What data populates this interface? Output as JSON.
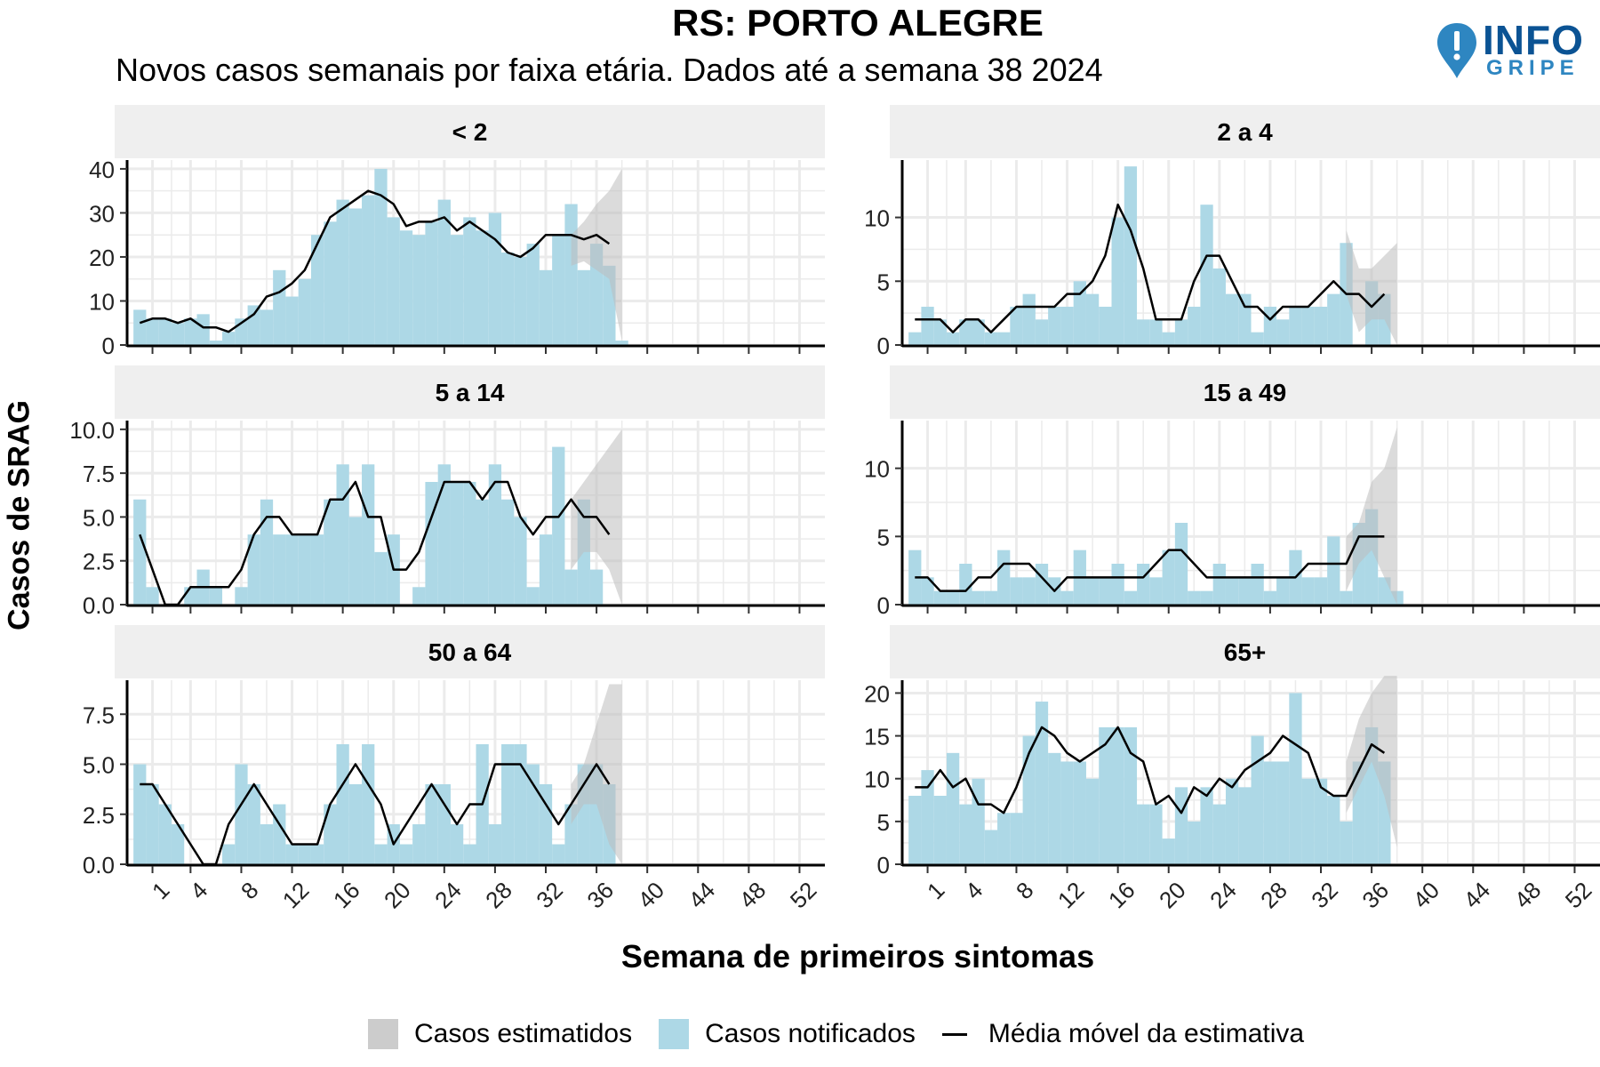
{
  "title": "RS: PORTO ALEGRE",
  "subtitle": "Novos casos semanais por faixa etária. Dados até a semana 38 2024",
  "logo": {
    "text": "INFO",
    "sub": "GRIPE"
  },
  "colors": {
    "notified": "#add8e6",
    "estimated": "#cccccc",
    "line": "#000000",
    "strip": "#efefef",
    "grid": "#ebebeb"
  },
  "chart_data": {
    "type": "bar",
    "xlabel": "Semana de primeiros sintomas",
    "ylabel": "Casos de SRAG",
    "x_ticks": [
      1,
      4,
      8,
      12,
      16,
      20,
      24,
      28,
      32,
      36,
      40,
      44,
      48,
      52
    ],
    "x_range": [
      -1,
      54
    ],
    "legend": [
      "Casos estimatidos",
      "Casos notificados",
      "Média móvel da estimativa"
    ],
    "legend_position": "bottom",
    "panels": [
      {
        "label": "< 2",
        "ylim": [
          0,
          42
        ],
        "y_ticks": [
          "0",
          "10",
          "20",
          "30",
          "40"
        ],
        "y_tick_values": [
          0,
          10,
          20,
          30,
          40
        ],
        "weeks": [
          0,
          1,
          2,
          3,
          4,
          5,
          6,
          7,
          8,
          9,
          10,
          11,
          12,
          13,
          14,
          15,
          16,
          17,
          18,
          19,
          20,
          21,
          22,
          23,
          24,
          25,
          26,
          27,
          28,
          29,
          30,
          31,
          32,
          33,
          34,
          35,
          36,
          37,
          38
        ],
        "notified": [
          8,
          6,
          6,
          5,
          6,
          7,
          1,
          3,
          6,
          9,
          8,
          17,
          11,
          15,
          25,
          28,
          33,
          31,
          34,
          40,
          29,
          26,
          25,
          28,
          33,
          25,
          29,
          26,
          30,
          21,
          20,
          23,
          17,
          25,
          32,
          17,
          23,
          18,
          1
        ],
        "moving_avg_weeks": [
          0,
          1,
          2,
          3,
          4,
          5,
          6,
          7,
          8,
          9,
          10,
          11,
          12,
          13,
          14,
          15,
          16,
          17,
          18,
          19,
          20,
          21,
          22,
          23,
          24,
          25,
          26,
          27,
          28,
          29,
          30,
          31,
          32,
          33,
          34,
          35,
          36,
          37
        ],
        "moving_avg": [
          5,
          6,
          6,
          5,
          6,
          4,
          4,
          3,
          5,
          7,
          11,
          12,
          14,
          17,
          23,
          29,
          31,
          33,
          35,
          34,
          32,
          27,
          28,
          28,
          29,
          26,
          28,
          26,
          24,
          21,
          20,
          22,
          25,
          25,
          25,
          24,
          25,
          23
        ],
        "estimate_weeks": [
          34,
          35,
          36,
          37,
          38
        ],
        "estimate_low": [
          18,
          19,
          17,
          15,
          1
        ],
        "estimate_high": [
          25,
          28,
          32,
          35,
          40
        ]
      },
      {
        "label": "2 a 4",
        "ylim": [
          0,
          14.5
        ],
        "y_ticks": [
          "0",
          "5",
          "10"
        ],
        "y_tick_values": [
          0,
          5,
          10
        ],
        "weeks": [
          0,
          1,
          2,
          3,
          4,
          5,
          6,
          7,
          8,
          9,
          10,
          11,
          12,
          13,
          14,
          15,
          16,
          17,
          18,
          19,
          20,
          21,
          22,
          23,
          24,
          25,
          26,
          27,
          28,
          29,
          30,
          31,
          32,
          33,
          34,
          35,
          36,
          37,
          38
        ],
        "notified": [
          1,
          3,
          2,
          1,
          2,
          2,
          1,
          1,
          3,
          4,
          2,
          3,
          3,
          5,
          4,
          3,
          10,
          14,
          2,
          2,
          1,
          2,
          3,
          11,
          6,
          4,
          4,
          1,
          3,
          2,
          3,
          3,
          3,
          4,
          8,
          0,
          5,
          4,
          0
        ],
        "moving_avg_weeks": [
          0,
          1,
          2,
          3,
          4,
          5,
          6,
          7,
          8,
          9,
          10,
          11,
          12,
          13,
          14,
          15,
          16,
          17,
          18,
          19,
          20,
          21,
          22,
          23,
          24,
          25,
          26,
          27,
          28,
          29,
          30,
          31,
          32,
          33,
          34,
          35,
          36,
          37
        ],
        "moving_avg": [
          2,
          2,
          2,
          1,
          2,
          2,
          1,
          2,
          3,
          3,
          3,
          3,
          4,
          4,
          5,
          7,
          11,
          9,
          6,
          2,
          2,
          2,
          5,
          7,
          7,
          5,
          3,
          3,
          2,
          3,
          3,
          3,
          4,
          5,
          4,
          4,
          3,
          4
        ],
        "estimate_weeks": [
          34,
          35,
          36,
          37,
          38
        ],
        "estimate_low": [
          4,
          1,
          2,
          2,
          0
        ],
        "estimate_high": [
          9,
          6,
          6,
          7,
          8
        ]
      },
      {
        "label": "5 a 14",
        "ylim": [
          0,
          10.5
        ],
        "y_ticks": [
          "0.0",
          "2.5",
          "5.0",
          "7.5",
          "10.0"
        ],
        "y_tick_values": [
          0,
          2.5,
          5,
          7.5,
          10
        ],
        "weeks": [
          0,
          1,
          2,
          3,
          4,
          5,
          6,
          7,
          8,
          9,
          10,
          11,
          12,
          13,
          14,
          15,
          16,
          17,
          18,
          19,
          20,
          21,
          22,
          23,
          24,
          25,
          26,
          27,
          28,
          29,
          30,
          31,
          32,
          33,
          34,
          35,
          36,
          37,
          38
        ],
        "notified": [
          6,
          1,
          0,
          0,
          1,
          2,
          1,
          0,
          1,
          4,
          6,
          4,
          4,
          4,
          4,
          6,
          8,
          5,
          8,
          3,
          4,
          0,
          1,
          7,
          8,
          7,
          7,
          6,
          8,
          6,
          5,
          1,
          4,
          9,
          2,
          6,
          2,
          0,
          0
        ],
        "moving_avg_weeks": [
          0,
          1,
          2,
          3,
          4,
          5,
          6,
          7,
          8,
          9,
          10,
          11,
          12,
          13,
          14,
          15,
          16,
          17,
          18,
          19,
          20,
          21,
          22,
          23,
          24,
          25,
          26,
          27,
          28,
          29,
          30,
          31,
          32,
          33,
          34,
          35,
          36,
          37
        ],
        "moving_avg": [
          4,
          2,
          0,
          0,
          1,
          1,
          1,
          1,
          2,
          4,
          5,
          5,
          4,
          4,
          4,
          6,
          6,
          7,
          5,
          5,
          2,
          2,
          3,
          5,
          7,
          7,
          7,
          6,
          7,
          7,
          5,
          4,
          5,
          5,
          6,
          5,
          5,
          4
        ],
        "estimate_weeks": [
          34,
          35,
          36,
          37,
          38
        ],
        "estimate_low": [
          2,
          3,
          3,
          2,
          0
        ],
        "estimate_high": [
          6,
          7,
          8,
          9,
          10
        ]
      },
      {
        "label": "15 a 49",
        "ylim": [
          0,
          13.5
        ],
        "y_ticks": [
          "0",
          "5",
          "10"
        ],
        "y_tick_values": [
          0,
          5,
          10
        ],
        "weeks": [
          0,
          1,
          2,
          3,
          4,
          5,
          6,
          7,
          8,
          9,
          10,
          11,
          12,
          13,
          14,
          15,
          16,
          17,
          18,
          19,
          20,
          21,
          22,
          23,
          24,
          25,
          26,
          27,
          28,
          29,
          30,
          31,
          32,
          33,
          34,
          35,
          36,
          37,
          38
        ],
        "notified": [
          4,
          2,
          1,
          1,
          3,
          1,
          1,
          4,
          2,
          2,
          3,
          2,
          1,
          4,
          2,
          2,
          3,
          1,
          3,
          2,
          4,
          6,
          1,
          1,
          3,
          2,
          2,
          3,
          1,
          2,
          4,
          2,
          2,
          5,
          1,
          6,
          7,
          2,
          1
        ],
        "moving_avg_weeks": [
          0,
          1,
          2,
          3,
          4,
          5,
          6,
          7,
          8,
          9,
          10,
          11,
          12,
          13,
          14,
          15,
          16,
          17,
          18,
          19,
          20,
          21,
          22,
          23,
          24,
          25,
          26,
          27,
          28,
          29,
          30,
          31,
          32,
          33,
          34,
          35,
          36,
          37
        ],
        "moving_avg": [
          2,
          2,
          1,
          1,
          1,
          2,
          2,
          3,
          3,
          3,
          2,
          1,
          2,
          2,
          2,
          2,
          2,
          2,
          2,
          3,
          4,
          4,
          3,
          2,
          2,
          2,
          2,
          2,
          2,
          2,
          2,
          3,
          3,
          3,
          3,
          5,
          5,
          5
        ],
        "estimate_weeks": [
          34,
          35,
          36,
          37,
          38
        ],
        "estimate_low": [
          1,
          3,
          4,
          2,
          0
        ],
        "estimate_high": [
          5,
          6,
          9,
          10,
          13
        ]
      },
      {
        "label": "50 a 64",
        "ylim": [
          0,
          9.2
        ],
        "y_ticks": [
          "0.0",
          "2.5",
          "5.0",
          "7.5"
        ],
        "y_tick_values": [
          0,
          2.5,
          5,
          7.5
        ],
        "weeks": [
          0,
          1,
          2,
          3,
          4,
          5,
          6,
          7,
          8,
          9,
          10,
          11,
          12,
          13,
          14,
          15,
          16,
          17,
          18,
          19,
          20,
          21,
          22,
          23,
          24,
          25,
          26,
          27,
          28,
          29,
          30,
          31,
          32,
          33,
          34,
          35,
          36,
          37,
          38
        ],
        "notified": [
          5,
          4,
          3,
          2,
          0,
          0,
          0,
          1,
          5,
          4,
          2,
          3,
          1,
          1,
          1,
          3,
          6,
          4,
          6,
          1,
          2,
          1,
          2,
          4,
          4,
          2,
          1,
          6,
          2,
          6,
          6,
          5,
          4,
          1,
          3,
          5,
          5,
          4,
          0
        ],
        "moving_avg_weeks": [
          0,
          1,
          2,
          3,
          4,
          5,
          6,
          7,
          8,
          9,
          10,
          11,
          12,
          13,
          14,
          15,
          16,
          17,
          18,
          19,
          20,
          21,
          22,
          23,
          24,
          25,
          26,
          27,
          28,
          29,
          30,
          31,
          32,
          33,
          34,
          35,
          36,
          37
        ],
        "moving_avg": [
          4,
          4,
          3,
          2,
          1,
          0,
          0,
          2,
          3,
          4,
          3,
          2,
          1,
          1,
          1,
          3,
          4,
          5,
          4,
          3,
          1,
          2,
          3,
          4,
          3,
          2,
          3,
          3,
          5,
          5,
          5,
          4,
          3,
          2,
          3,
          4,
          5,
          4
        ],
        "estimate_weeks": [
          34,
          35,
          36,
          37,
          38
        ],
        "estimate_low": [
          2,
          3,
          3,
          1,
          0
        ],
        "estimate_high": [
          4,
          5,
          7,
          9,
          9
        ]
      },
      {
        "label": "65+",
        "ylim": [
          0,
          21.5
        ],
        "y_ticks": [
          "0",
          "5",
          "10",
          "15",
          "20"
        ],
        "y_tick_values": [
          0,
          5,
          10,
          15,
          20
        ],
        "weeks": [
          0,
          1,
          2,
          3,
          4,
          5,
          6,
          7,
          8,
          9,
          10,
          11,
          12,
          13,
          14,
          15,
          16,
          17,
          18,
          19,
          20,
          21,
          22,
          23,
          24,
          25,
          26,
          27,
          28,
          29,
          30,
          31,
          32,
          33,
          34,
          35,
          36,
          37,
          38
        ],
        "notified": [
          8,
          11,
          8,
          13,
          7,
          10,
          4,
          6,
          6,
          15,
          19,
          13,
          12,
          12,
          10,
          16,
          16,
          16,
          7,
          7,
          3,
          9,
          5,
          9,
          7,
          10,
          9,
          15,
          12,
          12,
          20,
          10,
          10,
          8,
          5,
          12,
          16,
          12,
          0
        ],
        "moving_avg_weeks": [
          0,
          1,
          2,
          3,
          4,
          5,
          6,
          7,
          8,
          9,
          10,
          11,
          12,
          13,
          14,
          15,
          16,
          17,
          18,
          19,
          20,
          21,
          22,
          23,
          24,
          25,
          26,
          27,
          28,
          29,
          30,
          31,
          32,
          33,
          34,
          35,
          36,
          37
        ],
        "moving_avg": [
          9,
          9,
          11,
          9,
          10,
          7,
          7,
          6,
          9,
          13,
          16,
          15,
          13,
          12,
          13,
          14,
          16,
          13,
          12,
          7,
          8,
          6,
          9,
          8,
          10,
          9,
          11,
          12,
          13,
          15,
          14,
          13,
          9,
          8,
          8,
          11,
          14,
          13
        ],
        "estimate_weeks": [
          34,
          35,
          36,
          37,
          38
        ],
        "estimate_low": [
          6,
          9,
          12,
          8,
          2
        ],
        "estimate_high": [
          12,
          17,
          20,
          22,
          22
        ]
      }
    ]
  }
}
